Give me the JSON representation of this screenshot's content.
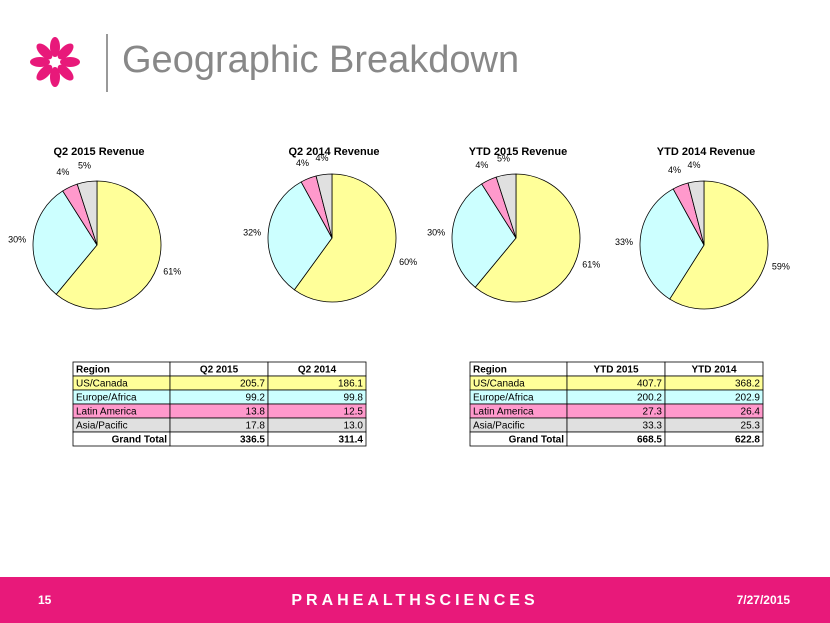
{
  "header": {
    "title": "Geographic Breakdown"
  },
  "chart_data": [
    {
      "type": "pie",
      "title": "Q2 2015 Revenue",
      "values": [
        61,
        30,
        4,
        5
      ],
      "value_labels": [
        "61%",
        "30%",
        "4%",
        "5%"
      ],
      "colors": [
        "#ffff99",
        "#ccffff",
        "#ff99cc",
        "#e0e0e0"
      ]
    },
    {
      "type": "pie",
      "title": "Q2 2014 Revenue",
      "values": [
        60,
        32,
        4,
        4
      ],
      "value_labels": [
        "60%",
        "32%",
        "4%",
        "4%"
      ],
      "colors": [
        "#ffff99",
        "#ccffff",
        "#ff99cc",
        "#e0e0e0"
      ]
    },
    {
      "type": "pie",
      "title": "YTD 2015 Revenue",
      "values": [
        61,
        30,
        4,
        5
      ],
      "value_labels": [
        "61%",
        "30%",
        "4%",
        "5%"
      ],
      "colors": [
        "#ffff99",
        "#ccffff",
        "#ff99cc",
        "#e0e0e0"
      ]
    },
    {
      "type": "pie",
      "title": "YTD 2014 Revenue",
      "values": [
        59,
        33,
        4,
        4
      ],
      "value_labels": [
        "59%",
        "33%",
        "4%",
        "4%"
      ],
      "colors": [
        "#ffff99",
        "#ccffff",
        "#ff99cc",
        "#e0e0e0"
      ]
    }
  ],
  "tables": [
    {
      "header": [
        "Region",
        "Q2 2015",
        "Q2 2014"
      ],
      "rows": [
        [
          "US/Canada",
          "205.7",
          "186.1"
        ],
        [
          "Europe/Africa",
          "99.2",
          "99.8"
        ],
        [
          "Latin America",
          "13.8",
          "12.5"
        ],
        [
          "Asia/Pacific",
          "17.8",
          "13.0"
        ]
      ],
      "total": [
        "Grand Total",
        "336.5",
        "311.4"
      ]
    },
    {
      "header": [
        "Region",
        "YTD 2015",
        "YTD 2014"
      ],
      "rows": [
        [
          "US/Canada",
          "407.7",
          "368.2"
        ],
        [
          "Europe/Africa",
          "200.2",
          "202.9"
        ],
        [
          "Latin America",
          "27.3",
          "26.4"
        ],
        [
          "Asia/Pacific",
          "33.3",
          "25.3"
        ]
      ],
      "total": [
        "Grand Total",
        "668.5",
        "622.8"
      ]
    }
  ],
  "footer": {
    "page": "15",
    "brand": "PRAHEALTHSCIENCES",
    "date": "7/27/2015"
  }
}
